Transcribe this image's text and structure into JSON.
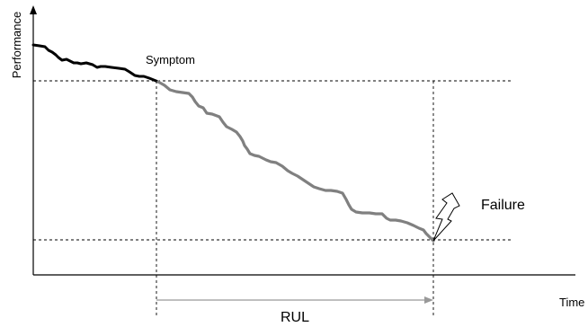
{
  "labels": {
    "y_axis": "Performance",
    "x_axis": "Time",
    "symptom": "Symptom",
    "failure": "Failure",
    "rul": "RUL"
  },
  "colors": {
    "healthy_curve": "#000000",
    "degradation_curve": "#808080",
    "axes": "#000000",
    "guide_lines": "#000000",
    "rul_arrow": "#999999"
  },
  "icons": [
    "lightning-bolt-icon"
  ]
}
